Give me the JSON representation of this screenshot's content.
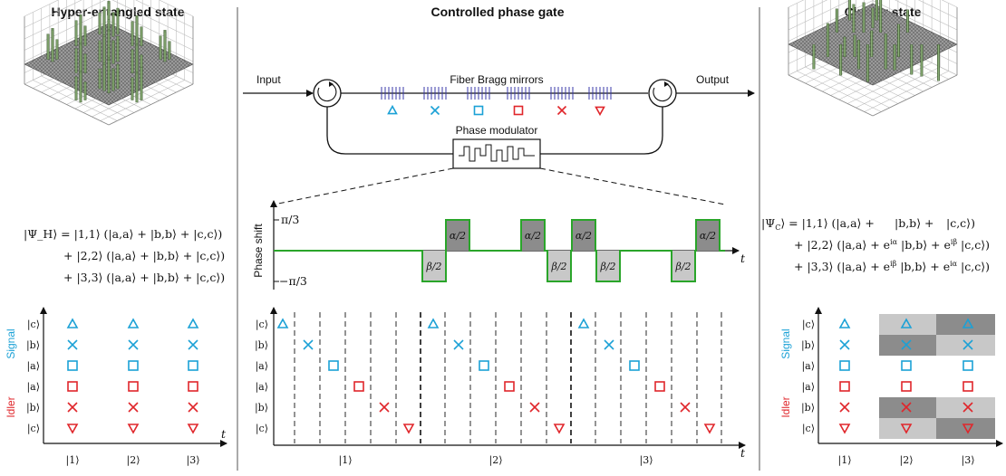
{
  "titles": {
    "left": "Hyper-entangled state",
    "center": "Controlled phase gate",
    "right": "Cluster state"
  },
  "setup": {
    "input": "Input",
    "output": "Output",
    "mirrors": "Fiber Bragg mirrors",
    "modulator": "Phase modulator"
  },
  "phase_plot": {
    "ylabel": "Phase shift",
    "ytick_top": "π/3",
    "ytick_bottom": "−π/3",
    "xlabel": "t",
    "pulses": [
      "β/2",
      "α/2",
      "α/2",
      "β/2",
      "α/2",
      "β/2",
      "β/2",
      "α/2"
    ]
  },
  "equations": {
    "hyper": [
      "|Ψ_H⟩ = |1,1⟩ (|a,a⟩ + |b,b⟩ + |c,c⟩)",
      "+ |2,2⟩ (|a,a⟩ + |b,b⟩ + |c,c⟩)",
      "+ |3,3⟩ (|a,a⟩ + |b,b⟩ + |c,c⟩)"
    ],
    "cluster": [
      "|Ψ_C⟩ = |1,1⟩ (|a,a⟩ +       |b,b⟩ +       |c,c⟩)",
      "+ |2,2⟩ (|a,a⟩ + e^{iα} |b,b⟩ + e^{iβ} |c,c⟩)",
      "+ |3,3⟩ (|a,a⟩ + e^{iβ} |b,b⟩ + e^{iα} |c,c⟩)"
    ]
  },
  "grid": {
    "row_labels": [
      "|c⟩",
      "|b⟩",
      "|a⟩",
      "|a⟩",
      "|b⟩",
      "|c⟩"
    ],
    "signal_label": "Signal",
    "idler_label": "Idler",
    "time_labels": [
      "|1⟩",
      "|2⟩",
      "|3⟩"
    ],
    "t_label": "t"
  },
  "colors": {
    "signal": "#1ba1d6",
    "idler": "#e0262b",
    "green": "#2aa52a",
    "mirror": "#3a3aa8",
    "dark_gray": "#8c8c8c",
    "light_gray": "#c8c8c8"
  },
  "markers": [
    "triangle-up-icon",
    "cross-icon",
    "square-icon",
    "square-icon",
    "cross-icon",
    "triangle-down-icon"
  ]
}
